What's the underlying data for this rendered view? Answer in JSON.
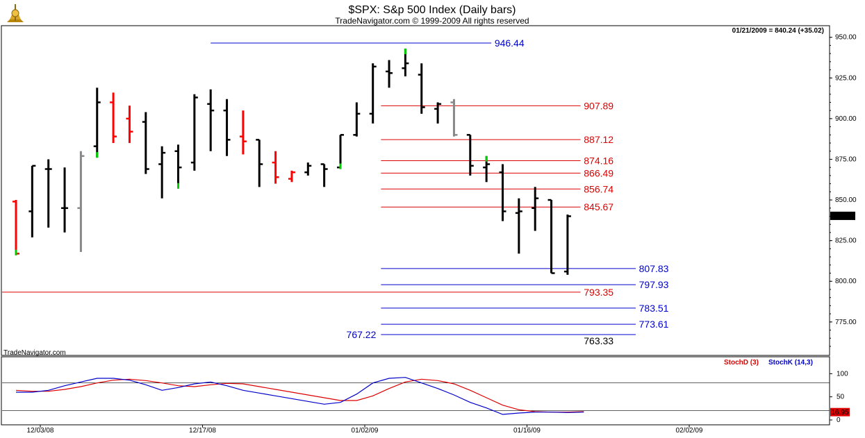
{
  "chart_data": {
    "type": "ohlc",
    "title": "$SPX:  S&p 500 Index  (Daily bars)",
    "subtitle": "TradeNavigator.com © 1999-2009 All rights reserved",
    "watermark": "TradeNavigator.com",
    "info": "01/21/2009 = 840.24 (+35.02)",
    "last_price_label": "840.24",
    "ylim": [
      757,
      955
    ],
    "y_ticks": [
      775,
      800,
      825,
      850,
      875,
      900,
      925,
      950
    ],
    "y_tick_labels": [
      "775.00",
      "800.00",
      "825.00",
      "850.00",
      "875.00",
      "900.00",
      "925.00",
      "950.00"
    ],
    "x_ticks": [
      {
        "label": "12/03/08",
        "bar": 1.5
      },
      {
        "label": "12/17/08",
        "bar": 11.5
      },
      {
        "label": "01/02/09",
        "bar": 21.5
      },
      {
        "label": "01/16/09",
        "bar": 31.5
      },
      {
        "label": "02/02/09",
        "bar": 41.5
      }
    ],
    "colors": {
      "up_close": "#00cc00",
      "down_close": "#ff0000",
      "neutral": "#000000",
      "gray": "#888888",
      "blue": "#0000cc",
      "red": "#dd0000"
    },
    "bars": [
      {
        "high": 850,
        "low": 816,
        "open": 849,
        "close": 817,
        "color": "red"
      },
      {
        "high": 871,
        "low": 827,
        "open": 843,
        "close": 871,
        "color": "black"
      },
      {
        "high": 875,
        "low": 833,
        "open": 869,
        "close": 869,
        "color": "black"
      },
      {
        "high": 870,
        "low": 830,
        "open": 845,
        "close": 845,
        "color": "black"
      },
      {
        "high": 880,
        "low": 818,
        "open": 845,
        "close": 877,
        "color": "gray"
      },
      {
        "high": 919,
        "low": 876,
        "open": 883,
        "close": 910,
        "color": "black"
      },
      {
        "high": 916,
        "low": 885,
        "open": 910,
        "close": 889,
        "color": "red"
      },
      {
        "high": 908,
        "low": 885,
        "open": 900,
        "close": 892,
        "color": "red"
      },
      {
        "high": 904,
        "low": 866,
        "open": 898,
        "close": 869,
        "color": "black"
      },
      {
        "high": 883,
        "low": 851,
        "open": 872,
        "close": 879,
        "color": "black"
      },
      {
        "high": 884,
        "low": 857,
        "open": 880,
        "close": 870,
        "color": "black"
      },
      {
        "high": 915,
        "low": 868,
        "open": 873,
        "close": 913,
        "color": "black"
      },
      {
        "high": 918,
        "low": 880,
        "open": 909,
        "close": 905,
        "color": "black"
      },
      {
        "high": 912,
        "low": 877,
        "open": 905,
        "close": 887,
        "color": "black"
      },
      {
        "high": 905,
        "low": 878,
        "open": 889,
        "close": 886,
        "color": "red"
      },
      {
        "high": 887,
        "low": 858,
        "open": 887,
        "close": 872,
        "color": "black"
      },
      {
        "high": 880,
        "low": 860,
        "open": 873,
        "close": 864,
        "color": "red"
      },
      {
        "high": 868,
        "low": 861,
        "open": 863,
        "close": 867,
        "color": "red"
      },
      {
        "high": 873,
        "low": 865,
        "open": 867,
        "close": 871,
        "color": "black"
      },
      {
        "high": 872,
        "low": 858,
        "open": 872,
        "close": 869,
        "color": "black"
      },
      {
        "high": 890,
        "low": 869,
        "open": 870,
        "close": 890,
        "color": "black"
      },
      {
        "high": 910,
        "low": 889,
        "open": 890,
        "close": 903,
        "color": "black"
      },
      {
        "high": 934,
        "low": 897,
        "open": 903,
        "close": 932,
        "color": "black"
      },
      {
        "high": 936,
        "low": 919,
        "open": 929,
        "close": 928,
        "color": "black"
      },
      {
        "high": 943,
        "low": 926,
        "open": 931,
        "close": 934,
        "color": "black"
      },
      {
        "high": 934,
        "low": 903,
        "open": 927,
        "close": 907,
        "color": "black"
      },
      {
        "high": 910,
        "low": 897,
        "open": 906,
        "close": 909,
        "color": "black"
      },
      {
        "high": 912,
        "low": 889,
        "open": 910,
        "close": 890,
        "color": "gray"
      },
      {
        "high": 890,
        "low": 865,
        "open": 890,
        "close": 871,
        "color": "black"
      },
      {
        "high": 877,
        "low": 861,
        "open": 870,
        "close": 872,
        "color": "black"
      },
      {
        "high": 872,
        "low": 837,
        "open": 867,
        "close": 843,
        "color": "black"
      },
      {
        "high": 851,
        "low": 817,
        "open": 842,
        "close": 843,
        "color": "black"
      },
      {
        "high": 858,
        "low": 831,
        "open": 845,
        "close": 851,
        "color": "black"
      },
      {
        "high": 850,
        "low": 805,
        "open": 850,
        "close": 805,
        "color": "black"
      },
      {
        "high": 841,
        "low": 804,
        "open": 806,
        "close": 840,
        "color": "black"
      }
    ],
    "levels": [
      {
        "value": 946.44,
        "label": "946.44",
        "color": "blue",
        "from_bar": 12,
        "to_bar": 29.3,
        "label_bar": 29.5,
        "align": "start"
      },
      {
        "value": 907.89,
        "label": "907.89",
        "color": "red",
        "from_bar": 22.5,
        "to_bar": 34.8,
        "label_bar": 35,
        "align": "start"
      },
      {
        "value": 887.12,
        "label": "887.12",
        "color": "red",
        "from_bar": 22.5,
        "to_bar": 34.8,
        "label_bar": 35,
        "align": "start"
      },
      {
        "value": 874.16,
        "label": "874.16",
        "color": "red",
        "from_bar": 22.5,
        "to_bar": 34.8,
        "label_bar": 35,
        "align": "start"
      },
      {
        "value": 866.49,
        "label": "866.49",
        "color": "red",
        "from_bar": 22.5,
        "to_bar": 34.8,
        "label_bar": 35,
        "align": "start"
      },
      {
        "value": 856.74,
        "label": "856.74",
        "color": "red",
        "from_bar": 22.5,
        "to_bar": 34.8,
        "label_bar": 35,
        "align": "start"
      },
      {
        "value": 845.67,
        "label": "845.67",
        "color": "red",
        "from_bar": 22.5,
        "to_bar": 34.8,
        "label_bar": 35,
        "align": "start"
      },
      {
        "value": 807.83,
        "label": "807.83",
        "color": "blue",
        "from_bar": 22.5,
        "to_bar": 38.2,
        "label_bar": 38.4,
        "align": "start"
      },
      {
        "value": 797.93,
        "label": "797.93",
        "color": "blue",
        "from_bar": 22.5,
        "to_bar": 38.2,
        "label_bar": 38.4,
        "align": "start"
      },
      {
        "value": 793.35,
        "label": "793.35",
        "color": "red",
        "from_bar": -1,
        "to_bar": 34.8,
        "label_bar": 35,
        "align": "start"
      },
      {
        "value": 783.51,
        "label": "783.51",
        "color": "blue",
        "from_bar": 22.5,
        "to_bar": 38.2,
        "label_bar": 38.4,
        "align": "start"
      },
      {
        "value": 773.61,
        "label": "773.61",
        "color": "blue",
        "from_bar": 22.5,
        "to_bar": 38.2,
        "label_bar": 38.4,
        "align": "start"
      },
      {
        "value": 767.22,
        "label": "767.22",
        "color": "blue",
        "from_bar": 22.5,
        "to_bar": 38.2,
        "label_bar": 22.2,
        "align": "end"
      },
      {
        "value": 763.33,
        "label": "763.33",
        "color": "black",
        "from_bar": -1,
        "to_bar": 34.8,
        "label_bar": 35,
        "align": "start"
      }
    ],
    "stochastic": {
      "legend": [
        "StochD (3)",
        "StochK (14,3)"
      ],
      "ylim": [
        0,
        120
      ],
      "y_ticks": [
        0,
        50,
        100
      ],
      "y_tick_labels": [
        "0",
        "50",
        "100"
      ],
      "ref_lines": [
        20,
        80
      ],
      "last_label": "16.95",
      "series": [
        {
          "name": "StochD (3)",
          "color": "red",
          "values": [
            64,
            62,
            62,
            66,
            72,
            80,
            86,
            88,
            85,
            80,
            74,
            72,
            76,
            79,
            78,
            72,
            66,
            60,
            54,
            48,
            42,
            42,
            52,
            68,
            82,
            88,
            85,
            78,
            64,
            48,
            32,
            22,
            18,
            17,
            17,
            18
          ]
        },
        {
          "name": "StochK (14,3)",
          "color": "blue",
          "values": [
            60,
            60,
            64,
            74,
            82,
            90,
            90,
            86,
            76,
            64,
            70,
            78,
            82,
            74,
            64,
            58,
            52,
            46,
            40,
            34,
            38,
            56,
            80,
            90,
            92,
            80,
            68,
            54,
            38,
            26,
            12,
            15,
            17,
            17,
            16,
            17
          ]
        }
      ]
    }
  }
}
